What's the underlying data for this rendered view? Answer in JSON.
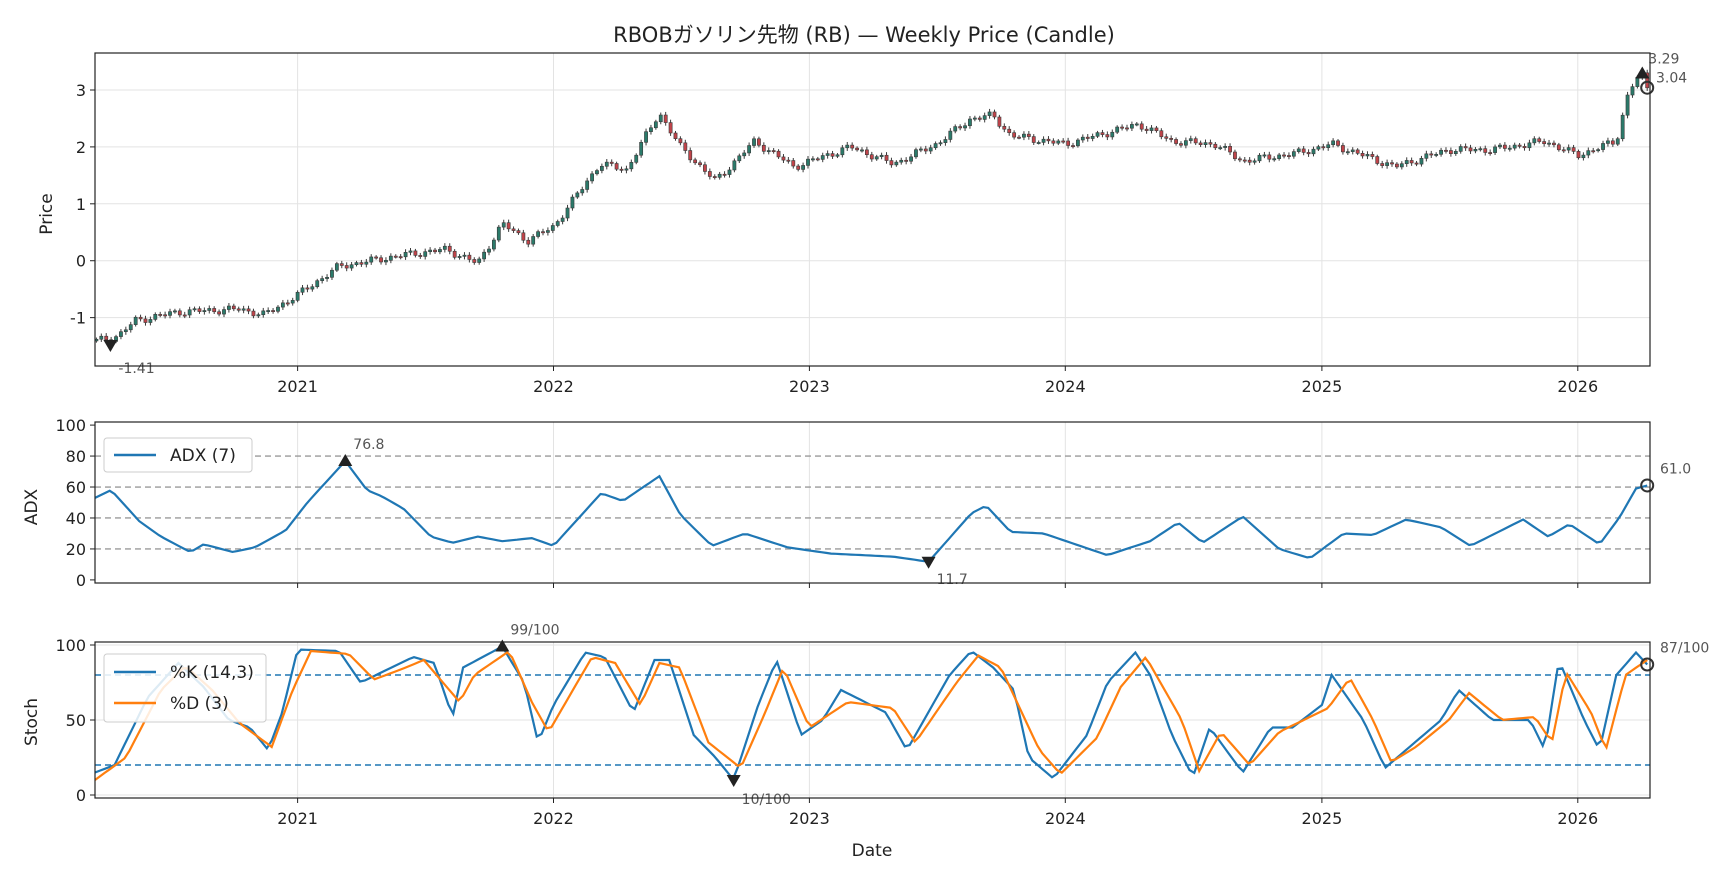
{
  "colors": {
    "up": "#2b7a6a",
    "down": "#c0444a",
    "wick": "#3a3a3a",
    "adx": "#1f77b4",
    "k": "#1f77b4",
    "d": "#ff7f0e",
    "ref_gray": "#9a9a9a",
    "ref_blue": "#1f77b4",
    "marker": "#222222"
  },
  "chart_data": [
    {
      "type": "candlestick",
      "title": "RBOBガソリン先物 (RB) — Weekly Price (Candle)",
      "ylabel": "Price",
      "xlim": [
        "2020-03-18",
        "2026-04-14"
      ],
      "ylim": [
        -1.85,
        3.65
      ],
      "x_ticks": [
        "2021",
        "2022",
        "2023",
        "2024",
        "2025",
        "2026"
      ],
      "y_ticks": [
        -1,
        0,
        1,
        2,
        3
      ],
      "close_anchors": [
        [
          "2020-03-20",
          -1.41
        ],
        [
          "2020-04-20",
          -1.32
        ],
        [
          "2020-05-15",
          -1.05
        ],
        [
          "2020-07-15",
          -0.9
        ],
        [
          "2020-10-10",
          -0.85
        ],
        [
          "2020-11-15",
          -0.95
        ],
        [
          "2021-01-01",
          -0.6
        ],
        [
          "2021-03-01",
          -0.1
        ],
        [
          "2021-06-01",
          0.1
        ],
        [
          "2021-08-01",
          0.2
        ],
        [
          "2021-09-15",
          -0.05
        ],
        [
          "2021-10-20",
          0.65
        ],
        [
          "2021-11-25",
          0.35
        ],
        [
          "2022-01-01",
          0.6
        ],
        [
          "2022-03-08",
          1.7
        ],
        [
          "2022-04-15",
          1.6
        ],
        [
          "2022-06-01",
          2.6
        ],
        [
          "2022-07-01",
          2.0
        ],
        [
          "2022-08-20",
          1.4
        ],
        [
          "2022-10-15",
          2.1
        ],
        [
          "2022-12-10",
          1.65
        ],
        [
          "2023-03-01",
          2.0
        ],
        [
          "2023-05-01",
          1.7
        ],
        [
          "2023-07-01",
          2.05
        ],
        [
          "2023-08-20",
          2.5
        ],
        [
          "2023-09-20",
          2.55
        ],
        [
          "2023-10-15",
          2.2
        ],
        [
          "2024-01-01",
          2.05
        ],
        [
          "2024-04-15",
          2.4
        ],
        [
          "2024-06-01",
          2.1
        ],
        [
          "2024-08-01",
          2.05
        ],
        [
          "2024-09-10",
          1.75
        ],
        [
          "2024-12-01",
          1.9
        ],
        [
          "2025-01-15",
          2.05
        ],
        [
          "2025-04-15",
          1.65
        ],
        [
          "2025-07-01",
          1.95
        ],
        [
          "2025-09-01",
          1.95
        ],
        [
          "2025-11-15",
          2.1
        ],
        [
          "2026-01-01",
          1.85
        ],
        [
          "2026-02-25",
          2.1
        ],
        [
          "2026-03-15",
          3.0
        ],
        [
          "2026-04-01",
          3.29
        ],
        [
          "2026-04-10",
          3.04
        ]
      ],
      "annotations": [
        {
          "x": "2020-03-20",
          "y": -1.41,
          "text": "-1.41",
          "kind": "min"
        },
        {
          "x": "2026-04-03",
          "y": 3.29,
          "text": "3.29",
          "kind": "max"
        },
        {
          "x": "2026-04-10",
          "y": 3.04,
          "text": "3.04",
          "kind": "last"
        }
      ]
    },
    {
      "type": "line",
      "ylabel": "ADX",
      "ylim": [
        -2,
        102
      ],
      "y_ticks": [
        0,
        20,
        40,
        60,
        80,
        100
      ],
      "ref_lines": [
        20,
        40,
        60,
        80
      ],
      "series": [
        {
          "name": "ADX (7)",
          "points": [
            [
              "2020-03-18",
              53
            ],
            [
              "2020-04-10",
              58
            ],
            [
              "2020-05-20",
              38
            ],
            [
              "2020-06-20",
              28
            ],
            [
              "2020-08-01",
              18
            ],
            [
              "2020-08-20",
              23
            ],
            [
              "2020-10-01",
              18
            ],
            [
              "2020-11-01",
              21
            ],
            [
              "2020-12-15",
              32
            ],
            [
              "2021-01-15",
              50
            ],
            [
              "2021-03-10",
              76.8
            ],
            [
              "2021-04-10",
              58
            ],
            [
              "2021-05-01",
              54
            ],
            [
              "2021-06-01",
              46
            ],
            [
              "2021-07-10",
              28
            ],
            [
              "2021-08-10",
              24
            ],
            [
              "2021-09-15",
              28
            ],
            [
              "2021-10-20",
              25
            ],
            [
              "2021-12-01",
              27
            ],
            [
              "2022-01-01",
              22
            ],
            [
              "2022-03-10",
              56
            ],
            [
              "2022-04-10",
              51
            ],
            [
              "2022-06-01",
              67
            ],
            [
              "2022-07-01",
              42
            ],
            [
              "2022-08-15",
              22
            ],
            [
              "2022-10-01",
              30
            ],
            [
              "2022-12-01",
              21
            ],
            [
              "2023-02-01",
              17
            ],
            [
              "2023-05-01",
              15
            ],
            [
              "2023-06-20",
              11.7
            ],
            [
              "2023-08-20",
              43
            ],
            [
              "2023-09-10",
              48
            ],
            [
              "2023-10-15",
              31
            ],
            [
              "2023-12-01",
              30
            ],
            [
              "2024-03-01",
              16
            ],
            [
              "2024-05-01",
              25
            ],
            [
              "2024-06-10",
              37
            ],
            [
              "2024-07-15",
              24
            ],
            [
              "2024-09-10",
              41
            ],
            [
              "2024-11-01",
              20
            ],
            [
              "2024-12-15",
              14
            ],
            [
              "2025-02-01",
              30
            ],
            [
              "2025-03-15",
              29
            ],
            [
              "2025-05-01",
              39
            ],
            [
              "2025-06-20",
              34
            ],
            [
              "2025-08-01",
              22
            ],
            [
              "2025-10-15",
              39
            ],
            [
              "2025-11-20",
              28
            ],
            [
              "2025-12-20",
              36
            ],
            [
              "2026-02-01",
              23
            ],
            [
              "2026-03-01",
              40
            ],
            [
              "2026-03-25",
              59
            ],
            [
              "2026-04-10",
              61
            ]
          ]
        }
      ],
      "annotations": [
        {
          "x": "2021-03-10",
          "y": 76.8,
          "text": "76.8",
          "kind": "max"
        },
        {
          "x": "2023-06-20",
          "y": 11.7,
          "text": "11.7",
          "kind": "min"
        },
        {
          "x": "2026-04-10",
          "y": 61,
          "text": "61.0",
          "kind": "last"
        }
      ]
    },
    {
      "type": "line",
      "ylabel": "Stoch",
      "xlabel": "Date",
      "ylim": [
        -2,
        102
      ],
      "y_ticks": [
        0,
        50,
        100
      ],
      "x_ticks": [
        "2021",
        "2022",
        "2023",
        "2024",
        "2025",
        "2026"
      ],
      "ref_lines": [
        20,
        80
      ],
      "series": [
        {
          "name": "%K (14,3)",
          "points": [
            [
              "2020-03-18",
              15
            ],
            [
              "2020-04-15",
              20
            ],
            [
              "2020-06-01",
              65
            ],
            [
              "2020-07-15",
              88
            ],
            [
              "2020-08-20",
              72
            ],
            [
              "2020-09-25",
              50
            ],
            [
              "2020-10-25",
              45
            ],
            [
              "2020-11-20",
              30
            ],
            [
              "2020-12-10",
              55
            ],
            [
              "2021-01-01",
              97
            ],
            [
              "2021-03-01",
              96
            ],
            [
              "2021-04-01",
              75
            ],
            [
              "2021-05-15",
              85
            ],
            [
              "2021-06-15",
              92
            ],
            [
              "2021-07-15",
              88
            ],
            [
              "2021-08-10",
              52
            ],
            [
              "2021-08-25",
              85
            ],
            [
              "2021-10-20",
              99
            ],
            [
              "2021-11-20",
              75
            ],
            [
              "2021-12-10",
              35
            ],
            [
              "2022-01-01",
              60
            ],
            [
              "2022-02-15",
              95
            ],
            [
              "2022-03-15",
              92
            ],
            [
              "2022-04-25",
              55
            ],
            [
              "2022-05-25",
              90
            ],
            [
              "2022-06-15",
              90
            ],
            [
              "2022-07-20",
              40
            ],
            [
              "2022-08-20",
              25
            ],
            [
              "2022-09-15",
              10
            ],
            [
              "2022-10-20",
              60
            ],
            [
              "2022-11-15",
              90
            ],
            [
              "2022-12-20",
              40
            ],
            [
              "2023-01-20",
              50
            ],
            [
              "2023-02-15",
              70
            ],
            [
              "2023-04-20",
              55
            ],
            [
              "2023-05-20",
              30
            ],
            [
              "2023-07-20",
              80
            ],
            [
              "2023-08-20",
              96
            ],
            [
              "2023-09-20",
              85
            ],
            [
              "2023-10-20",
              70
            ],
            [
              "2023-11-10",
              25
            ],
            [
              "2023-12-15",
              11
            ],
            [
              "2024-02-01",
              40
            ],
            [
              "2024-03-01",
              75
            ],
            [
              "2024-04-10",
              95
            ],
            [
              "2024-05-01",
              80
            ],
            [
              "2024-06-01",
              40
            ],
            [
              "2024-07-01",
              12
            ],
            [
              "2024-07-25",
              45
            ],
            [
              "2024-09-10",
              15
            ],
            [
              "2024-10-20",
              45
            ],
            [
              "2024-11-20",
              45
            ],
            [
              "2025-01-01",
              60
            ],
            [
              "2025-01-15",
              80
            ],
            [
              "2025-03-01",
              50
            ],
            [
              "2025-04-01",
              18
            ],
            [
              "2025-05-01",
              30
            ],
            [
              "2025-06-20",
              50
            ],
            [
              "2025-07-15",
              70
            ],
            [
              "2025-09-01",
              50
            ],
            [
              "2025-10-25",
              50
            ],
            [
              "2025-11-15",
              30
            ],
            [
              "2025-12-05",
              90
            ],
            [
              "2026-01-10",
              50
            ],
            [
              "2026-02-01",
              30
            ],
            [
              "2026-02-25",
              80
            ],
            [
              "2026-03-25",
              95
            ],
            [
              "2026-04-10",
              87
            ]
          ]
        },
        {
          "name": "%D (3)",
          "points": [
            [
              "2020-03-18",
              10
            ],
            [
              "2020-05-01",
              25
            ],
            [
              "2020-06-20",
              70
            ],
            [
              "2020-07-25",
              86
            ],
            [
              "2020-09-01",
              70
            ],
            [
              "2020-10-10",
              48
            ],
            [
              "2020-11-25",
              32
            ],
            [
              "2020-12-25",
              70
            ],
            [
              "2021-01-20",
              96
            ],
            [
              "2021-03-15",
              94
            ],
            [
              "2021-04-20",
              77
            ],
            [
              "2021-05-30",
              84
            ],
            [
              "2021-06-30",
              90
            ],
            [
              "2021-08-20",
              62
            ],
            [
              "2021-09-10",
              80
            ],
            [
              "2021-10-30",
              96
            ],
            [
              "2021-12-01",
              62
            ],
            [
              "2021-12-25",
              42
            ],
            [
              "2022-02-25",
              92
            ],
            [
              "2022-03-30",
              88
            ],
            [
              "2022-05-05",
              60
            ],
            [
              "2022-06-01",
              88
            ],
            [
              "2022-06-30",
              85
            ],
            [
              "2022-08-10",
              35
            ],
            [
              "2022-09-25",
              18
            ],
            [
              "2022-10-30",
              55
            ],
            [
              "2022-11-25",
              85
            ],
            [
              "2023-01-01",
              45
            ],
            [
              "2023-02-25",
              62
            ],
            [
              "2023-04-30",
              58
            ],
            [
              "2023-06-01",
              35
            ],
            [
              "2023-07-30",
              75
            ],
            [
              "2023-08-30",
              93
            ],
            [
              "2023-10-01",
              85
            ],
            [
              "2023-11-25",
              30
            ],
            [
              "2023-12-25",
              14
            ],
            [
              "2024-02-15",
              38
            ],
            [
              "2024-03-20",
              72
            ],
            [
              "2024-04-25",
              92
            ],
            [
              "2024-06-15",
              50
            ],
            [
              "2024-07-10",
              16
            ],
            [
              "2024-08-10",
              42
            ],
            [
              "2024-09-20",
              20
            ],
            [
              "2024-11-01",
              42
            ],
            [
              "2025-01-10",
              58
            ],
            [
              "2025-02-10",
              78
            ],
            [
              "2025-03-15",
              50
            ],
            [
              "2025-04-10",
              22
            ],
            [
              "2025-05-15",
              32
            ],
            [
              "2025-07-01",
              50
            ],
            [
              "2025-07-30",
              68
            ],
            [
              "2025-09-15",
              50
            ],
            [
              "2025-11-01",
              52
            ],
            [
              "2025-11-25",
              35
            ],
            [
              "2025-12-15",
              82
            ],
            [
              "2026-01-20",
              55
            ],
            [
              "2026-02-10",
              30
            ],
            [
              "2026-03-10",
              80
            ],
            [
              "2026-04-10",
              90
            ]
          ]
        }
      ],
      "annotations": [
        {
          "x": "2021-10-20",
          "y": 99,
          "text": "99/100",
          "kind": "max"
        },
        {
          "x": "2022-09-15",
          "y": 10,
          "text": "10/100",
          "kind": "min"
        },
        {
          "x": "2026-04-10",
          "y": 87,
          "text": "87/100",
          "kind": "last"
        }
      ]
    }
  ]
}
